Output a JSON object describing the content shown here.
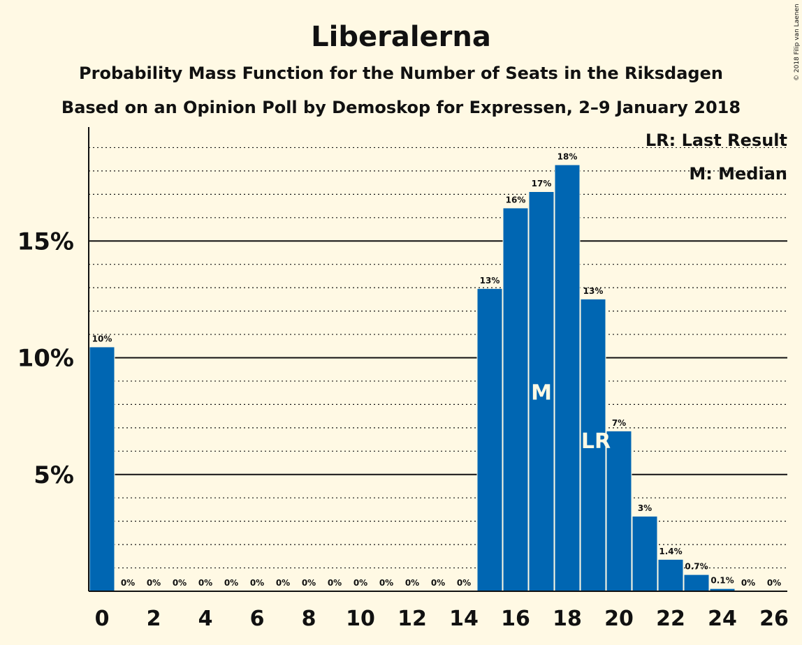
{
  "chart_data": {
    "type": "bar",
    "title": "Liberalerna",
    "subtitle": "Probability Mass Function for the Number of Seats in the Riksdagen",
    "subtitle2": "Based on an Opinion Poll by Demoskop for Expressen, 2–9 January 2018",
    "copyright": "© 2018 Filip van Laenen",
    "xlabel": "",
    "ylabel": "",
    "x": [
      0,
      1,
      2,
      3,
      4,
      5,
      6,
      7,
      8,
      9,
      10,
      11,
      12,
      13,
      14,
      15,
      16,
      17,
      18,
      19,
      20,
      21,
      22,
      23,
      24,
      25,
      26
    ],
    "values": [
      10.45,
      0,
      0,
      0,
      0,
      0,
      0,
      0,
      0,
      0,
      0,
      0,
      0,
      0,
      0,
      12.95,
      16.4,
      17.1,
      18.25,
      12.5,
      6.85,
      3.2,
      1.35,
      0.7,
      0.1,
      0,
      0
    ],
    "data_labels": [
      "10%",
      "0%",
      "0%",
      "0%",
      "0%",
      "0%",
      "0%",
      "0%",
      "0%",
      "0%",
      "0%",
      "0%",
      "0%",
      "0%",
      "0%",
      "13%",
      "16%",
      "17%",
      "18%",
      "13%",
      "7%",
      "3%",
      "1.4%",
      "0.7%",
      "0.1%",
      "0%",
      "0%"
    ],
    "x_tick_labels": [
      "0",
      "2",
      "4",
      "6",
      "8",
      "10",
      "12",
      "14",
      "16",
      "18",
      "20",
      "22",
      "24",
      "26"
    ],
    "y_ticks": [
      5,
      10,
      15
    ],
    "y_tick_labels": [
      "5%",
      "10%",
      "15%"
    ],
    "ylim": [
      0,
      20
    ],
    "minor_grid_step": 1,
    "median_seat": 17,
    "median_marker": "M",
    "last_result_seat": 19,
    "last_result_marker": "LR",
    "legend": [
      "LR: Last Result",
      "M: Median"
    ],
    "legend_position": "top-right",
    "colors": {
      "bar": "#0066b2",
      "background": "#fff9e4",
      "text": "#111111"
    }
  }
}
